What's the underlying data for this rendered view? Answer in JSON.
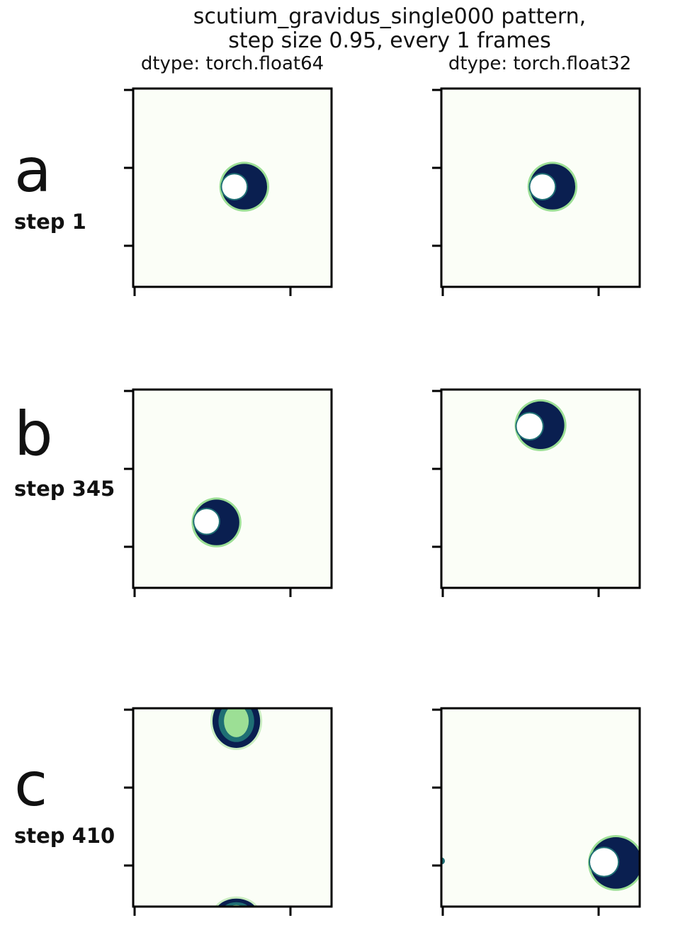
{
  "title_line1": "scutium_gravidus_single000 pattern,",
  "title_line2": "step size 0.95, every 1 frames",
  "columns": [
    "dtype: torch.float64",
    "dtype: torch.float32"
  ],
  "rows": [
    {
      "letter": "a",
      "step_label": "step 1"
    },
    {
      "letter": "b",
      "step_label": "step 345"
    },
    {
      "letter": "c",
      "step_label": "step 410"
    }
  ],
  "colors": {
    "background": "#fbfef7",
    "dark": "#0a1f50",
    "mid": "#1f6f74",
    "light": "#9cdf95",
    "pale": "#cbeec2"
  },
  "chart_data": {
    "type": "heatmap",
    "colormap": "YlGnBu-like (pale green to dark navy)",
    "x_ticks": 2,
    "y_ticks": 3,
    "tick_labels": "none",
    "grid": false,
    "patterns": [
      {
        "row": "a",
        "dtype": "torch.float64",
        "blobs": [
          {
            "cx": 0.56,
            "cy": 0.495,
            "r": 0.115,
            "hole_cx": 0.51,
            "hole_cy": 0.495,
            "hole_r": 0.062,
            "fill": "dark"
          }
        ]
      },
      {
        "row": "a",
        "dtype": "torch.float32",
        "blobs": [
          {
            "cx": 0.56,
            "cy": 0.495,
            "r": 0.115,
            "hole_cx": 0.51,
            "hole_cy": 0.495,
            "hole_r": 0.062,
            "fill": "dark"
          }
        ]
      },
      {
        "row": "b",
        "dtype": "torch.float64",
        "blobs": [
          {
            "cx": 0.42,
            "cy": 0.67,
            "r": 0.115,
            "hole_cx": 0.37,
            "hole_cy": 0.665,
            "hole_r": 0.062,
            "fill": "dark"
          }
        ]
      },
      {
        "row": "b",
        "dtype": "torch.float32",
        "blobs": [
          {
            "cx": 0.5,
            "cy": 0.18,
            "r": 0.12,
            "hole_cx": 0.445,
            "hole_cy": 0.185,
            "hole_r": 0.065,
            "fill": "dark"
          }
        ]
      },
      {
        "row": "c",
        "dtype": "torch.float64",
        "blobs": [
          {
            "cx": 0.52,
            "cy": 0.065,
            "rx": 0.12,
            "ry": 0.135,
            "fill": "ring-bright"
          },
          {
            "cx": 0.52,
            "cy": 1.04,
            "rx": 0.11,
            "ry": 0.08,
            "fill": "ring-bright"
          }
        ]
      },
      {
        "row": "c",
        "dtype": "torch.float32",
        "blobs": [
          {
            "cx": 0.88,
            "cy": 0.78,
            "r": 0.13,
            "hole_cx": 0.82,
            "hole_cy": 0.775,
            "hole_r": 0.07,
            "fill": "dark"
          },
          {
            "cx": 0.0,
            "cy": 0.77,
            "r": 0.018,
            "fill": "mid"
          }
        ]
      }
    ]
  }
}
